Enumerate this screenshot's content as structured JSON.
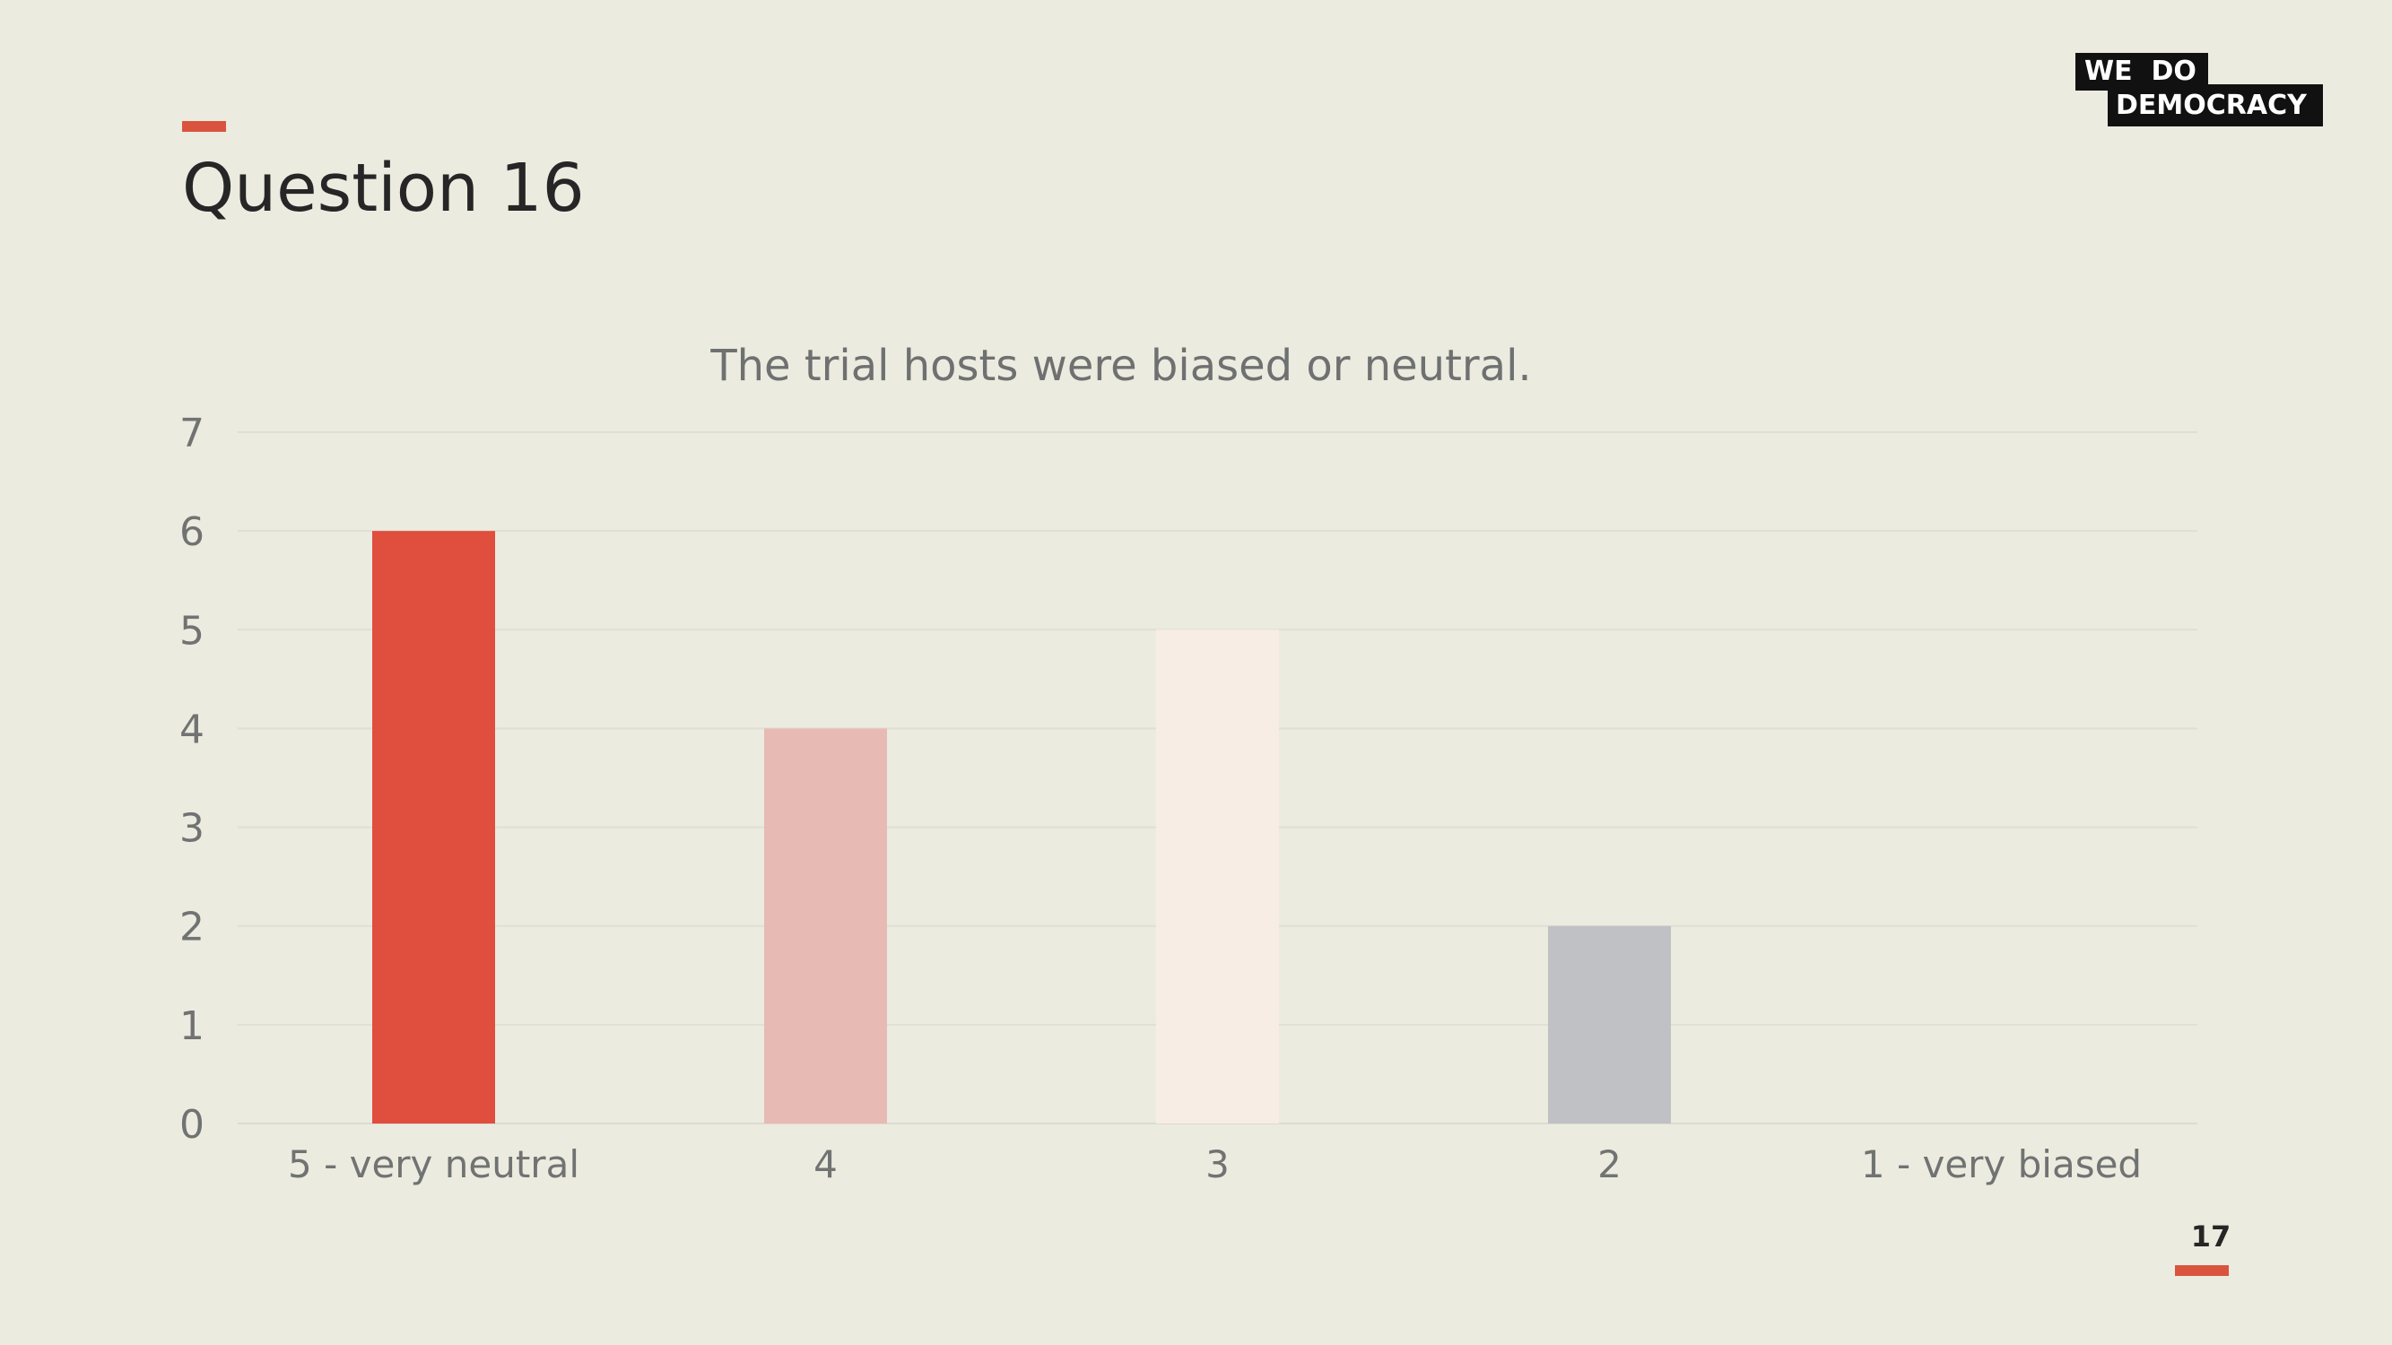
{
  "slide": {
    "title": "Question 16",
    "page_number": "17"
  },
  "logo": {
    "line1": "WE  DO",
    "line2": "DEMOCRACY"
  },
  "colors": {
    "accent": "#d9533f",
    "background": "#ecebe0"
  },
  "chart_data": {
    "type": "bar",
    "title": "The trial hosts were biased or neutral.",
    "categories": [
      "5 - very neutral",
      "4",
      "3",
      "2",
      "1 - very biased"
    ],
    "values": [
      6,
      4,
      5,
      2,
      0
    ],
    "bar_colors": [
      "#e04e3d",
      "#e7bab3",
      "#f7ede4",
      "#c0c1c4",
      "#c0c1c4"
    ],
    "ylim": [
      0,
      7
    ],
    "yticks": [
      0,
      1,
      2,
      3,
      4,
      5,
      6,
      7
    ],
    "grid": true,
    "xlabel": "",
    "ylabel": ""
  }
}
